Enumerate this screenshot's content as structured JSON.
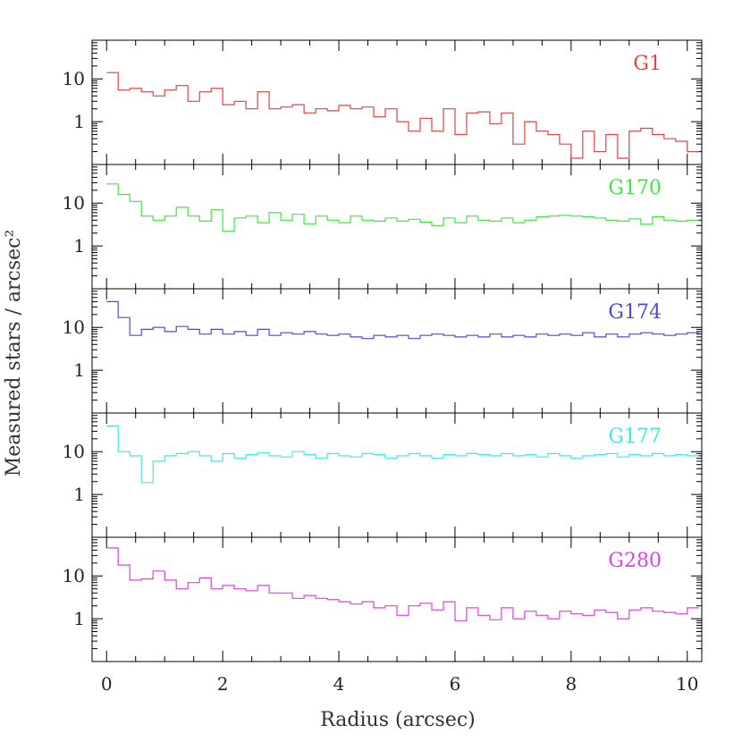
{
  "chart_data": {
    "type": "line",
    "title": "",
    "xlabel": "Radius (arcsec)",
    "ylabel": "Measured stars / arcsec²",
    "xlim": [
      -0.25,
      10.25
    ],
    "ylim": [
      0.1,
      80
    ],
    "yscale": "log",
    "x_ticks": [
      0,
      2,
      4,
      6,
      8,
      10
    ],
    "y_ticks": [
      1,
      10
    ],
    "x": [
      0.05,
      0.25,
      0.45,
      0.65,
      0.85,
      1.05,
      1.25,
      1.45,
      1.65,
      1.85,
      2.05,
      2.25,
      2.45,
      2.65,
      2.85,
      3.05,
      3.25,
      3.45,
      3.65,
      3.85,
      4.05,
      4.25,
      4.45,
      4.65,
      4.85,
      5.05,
      5.25,
      5.45,
      5.65,
      5.85,
      6.05,
      6.25,
      6.45,
      6.65,
      6.85,
      7.05,
      7.25,
      7.45,
      7.65,
      7.85,
      8.05,
      8.25,
      8.45,
      8.65,
      8.85,
      9.05,
      9.25,
      9.45,
      9.65,
      9.85,
      10.05
    ],
    "series": [
      {
        "name": "G1",
        "color": "#e8403f",
        "values": [
          14,
          5.5,
          6.0,
          5.0,
          4.0,
          5.5,
          7.0,
          3.0,
          5.0,
          6.0,
          2.5,
          3.0,
          2.0,
          5.0,
          2.0,
          2.2,
          2.5,
          1.6,
          2.0,
          1.8,
          2.4,
          2.0,
          2.2,
          1.3,
          2.0,
          1.0,
          0.6,
          1.2,
          0.6,
          2.0,
          0.5,
          1.6,
          1.7,
          0.9,
          1.6,
          0.3,
          1.0,
          0.6,
          0.5,
          0.3,
          0.14,
          0.6,
          0.2,
          0.5,
          0.14,
          0.6,
          0.7,
          0.5,
          0.4,
          0.35,
          0.2
        ]
      },
      {
        "name": "G170",
        "color": "#3fe83f",
        "values": [
          28,
          16,
          11,
          5.0,
          4.0,
          5.0,
          8.0,
          5.0,
          3.8,
          7.0,
          2.2,
          4.5,
          5.0,
          3.5,
          6.0,
          4.0,
          5.5,
          3.3,
          5.0,
          4.0,
          3.5,
          5.0,
          4.0,
          3.8,
          4.5,
          3.8,
          4.2,
          3.6,
          3.0,
          4.5,
          3.5,
          5.0,
          4.0,
          3.8,
          4.5,
          3.5,
          4.0,
          4.8,
          5.0,
          5.2,
          5.0,
          4.8,
          4.5,
          4.0,
          3.8,
          4.3,
          3.2,
          4.8,
          4.0,
          3.8,
          4.0
        ]
      },
      {
        "name": "G174",
        "color": "#4a4ae0",
        "values": [
          40,
          17,
          6.5,
          9.0,
          10,
          8.0,
          10.5,
          9.0,
          7.0,
          9.0,
          7.0,
          8.0,
          6.5,
          9.0,
          6.5,
          7.5,
          7.0,
          8.0,
          7.0,
          6.5,
          7.0,
          6.0,
          5.5,
          6.5,
          6.0,
          6.5,
          5.5,
          6.5,
          7.0,
          6.5,
          6.0,
          6.5,
          6.0,
          7.0,
          6.0,
          6.5,
          6.0,
          7.0,
          6.5,
          7.0,
          6.5,
          7.5,
          6.0,
          7.0,
          6.0,
          7.0,
          7.5,
          7.0,
          6.5,
          7.0,
          7.5
        ]
      },
      {
        "name": "G177",
        "color": "#3fe8e8",
        "values": [
          40,
          10,
          8.0,
          1.9,
          6.0,
          8.0,
          9.0,
          10,
          8.0,
          6.0,
          9.0,
          7.0,
          8.5,
          9.5,
          8.0,
          7.5,
          10,
          8.5,
          7.0,
          9.0,
          8.0,
          7.5,
          9.0,
          8.5,
          7.0,
          8.0,
          9.0,
          8.0,
          7.0,
          8.5,
          8.0,
          9.0,
          8.5,
          8.0,
          9.0,
          8.0,
          8.5,
          7.5,
          9.0,
          8.0,
          7.0,
          8.0,
          8.5,
          9.0,
          7.5,
          8.5,
          8.0,
          9.0,
          8.0,
          8.5,
          8.0
        ]
      },
      {
        "name": "G280",
        "color": "#e040e0",
        "values": [
          45,
          18,
          8.0,
          8.5,
          13,
          8.0,
          5.0,
          7.0,
          9.0,
          5.0,
          6.0,
          5.0,
          4.5,
          6.0,
          4.0,
          4.0,
          3.0,
          3.5,
          3.0,
          2.8,
          2.5,
          2.2,
          2.5,
          1.8,
          2.0,
          1.2,
          2.0,
          2.3,
          1.6,
          2.5,
          0.9,
          1.8,
          1.2,
          0.95,
          1.8,
          1.0,
          1.5,
          1.2,
          1.0,
          1.5,
          1.3,
          1.2,
          1.6,
          1.4,
          1.0,
          1.6,
          1.8,
          1.5,
          1.4,
          1.3,
          1.8
        ]
      }
    ],
    "grid": false,
    "legend": "none"
  }
}
